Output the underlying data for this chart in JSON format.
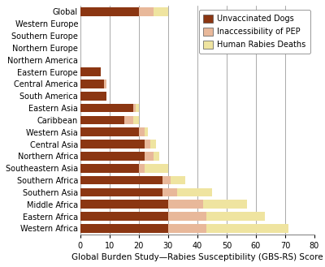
{
  "categories": [
    "Global",
    "Western Europe",
    "Southern Europe",
    "Northern Europe",
    "Northern America",
    "Eastern Europe",
    "Central America",
    "South America",
    "Eastern Asia",
    "Caribbean",
    "Western Asia",
    "Central Asia",
    "Northern Africa",
    "Southeastern Asia",
    "Southern Africa",
    "Southern Asia",
    "Middle Africa",
    "Eastern Africa",
    "Western Africa"
  ],
  "unvaccinated_dogs": [
    20,
    0,
    0,
    0,
    0,
    7,
    8,
    9,
    18,
    15,
    20,
    22,
    22,
    20,
    28,
    28,
    30,
    30,
    30
  ],
  "inaccessibility_pep": [
    5,
    0,
    0,
    0,
    0,
    0,
    1,
    0,
    1,
    3,
    2,
    2,
    3,
    2,
    3,
    5,
    12,
    13,
    13
  ],
  "human_rabies_deaths": [
    5,
    0,
    0,
    0,
    0,
    0,
    0,
    0,
    1,
    2,
    1,
    2,
    2,
    8,
    5,
    12,
    15,
    20,
    28
  ],
  "color_unvaccinated": "#8B3612",
  "color_pep": "#E8B89A",
  "color_deaths": "#EFE4A0",
  "xlim": [
    0,
    80
  ],
  "xticks": [
    0,
    10,
    20,
    30,
    40,
    50,
    60,
    70,
    80
  ],
  "xlabel": "Global Burden Study—Rabies Susceptibility (GBS-RS) Score",
  "legend_labels": [
    "Unvaccinated Dogs",
    "Inaccessibility of PEP",
    "Human Rabies Deaths"
  ],
  "label_fontsize": 7.0,
  "tick_fontsize": 7.0,
  "xlabel_fontsize": 7.5,
  "background_color": "#FFFFFF",
  "bar_height": 0.72,
  "figsize": [
    4.0,
    3.29
  ],
  "dpi": 100
}
